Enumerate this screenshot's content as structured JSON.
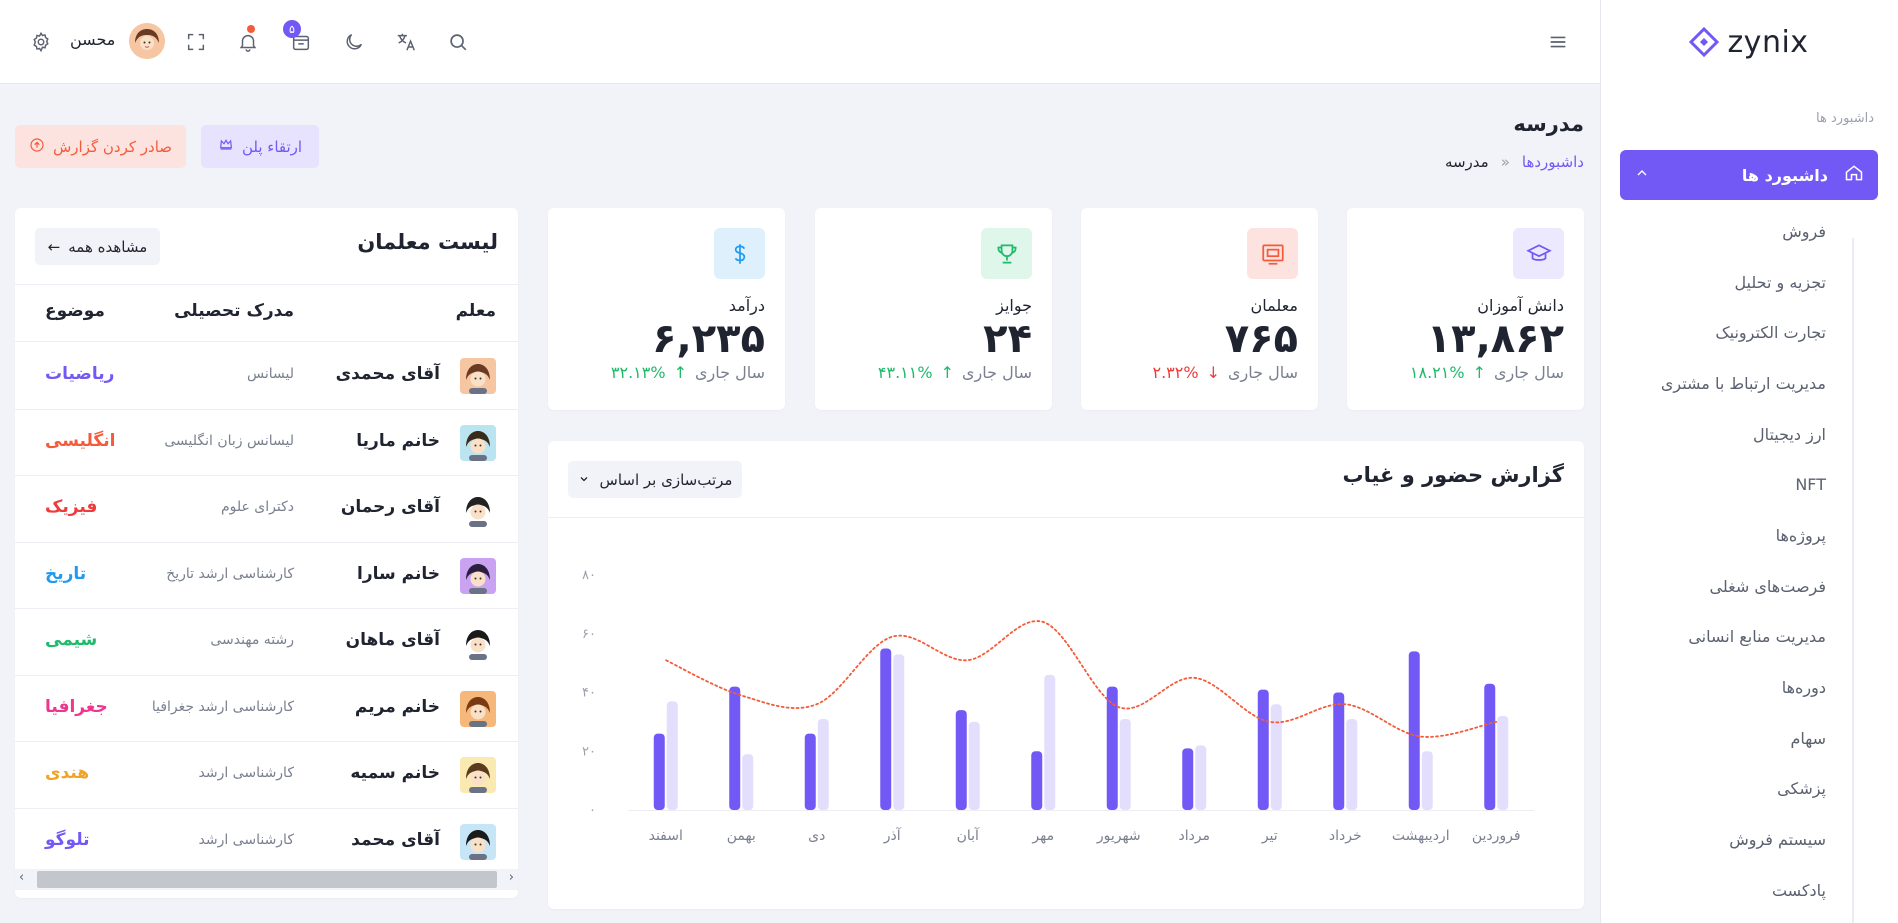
{
  "app": {
    "name": "zynix"
  },
  "header": {
    "user_name": "محسن",
    "cart_count": "۵"
  },
  "sidebar": {
    "section_title": "داشبورد ها",
    "active_item": "داشبورد ها",
    "items": [
      "فروش",
      "تجزیه و تحلیل",
      "تجارت الکترونیک",
      "مدیریت ارتباط با مشتری",
      "ارز دیجیتال",
      "NFT",
      "پروژه‌ها",
      "فرصت‌های شغلی",
      "مدیریت منابع انسانی",
      "دوره‌ها",
      "سهام",
      "پزشکی",
      "سیستم فروش",
      "پادکست"
    ]
  },
  "page": {
    "title": "مدرسه",
    "breadcrumb": {
      "parent": "داشبوردها",
      "separator": "»",
      "current": "مدرسه"
    },
    "export_label": "صادر کردن گزارش",
    "upgrade_label": "ارتقاء پلن"
  },
  "stats": [
    {
      "label": "دانش آموزان",
      "value": "۱۳,۸۶۲",
      "period": "سال جاری",
      "change": "۱۸.۲۱%",
      "trend": "up",
      "icon": "graduation-cap-icon",
      "icon_color": "#7258f5",
      "icon_bg": "#ece9fe"
    },
    {
      "label": "معلمان",
      "value": "۷۶۵",
      "period": "سال جاری",
      "change": "۲.۳۲%",
      "trend": "down",
      "icon": "presentation-board-icon",
      "icon_color": "#f35b3a",
      "icon_bg": "#fde3df"
    },
    {
      "label": "جوایز",
      "value": "۲۴",
      "period": "سال جاری",
      "change": "۴۳.۱۱%",
      "trend": "up",
      "icon": "trophy-icon",
      "icon_color": "#1fba6a",
      "icon_bg": "#dff6ea"
    },
    {
      "label": "درآمد",
      "value": "۶,۲۳۵",
      "period": "سال جاری",
      "change": "۳۲.۱۳%",
      "trend": "up",
      "icon": "dollar-icon",
      "icon_color": "#1e9bf0",
      "icon_bg": "#dff0fd"
    }
  ],
  "attendance": {
    "title": "گزارش حضور و غیاب",
    "sort_label": "مرتب‌سازی بر اساس"
  },
  "chart_data": {
    "type": "bar",
    "categories": [
      "فروردین",
      "اردیبهشت",
      "خرداد",
      "تیر",
      "مرداد",
      "شهریور",
      "مهر",
      "آبان",
      "آذر",
      "دی",
      "بهمن",
      "اسفند"
    ],
    "y_ticks": [
      "۰",
      "۲۰",
      "۴۰",
      "۶۰",
      "۸۰"
    ],
    "ylim": [
      0,
      80
    ],
    "series": [
      {
        "type": "bar",
        "color": "#7258f5",
        "values": [
          43,
          54,
          40,
          41,
          21,
          42,
          20,
          34,
          55,
          26,
          42,
          26
        ]
      },
      {
        "type": "bar",
        "color": "#e3defc",
        "values": [
          32,
          20,
          31,
          36,
          22,
          31,
          46,
          30,
          53,
          31,
          19,
          37
        ]
      },
      {
        "type": "line",
        "style": "dotted",
        "color": "#f35b3a",
        "values": [
          30,
          25,
          36,
          30,
          45,
          35,
          64,
          51,
          59,
          36,
          39,
          51
        ]
      }
    ],
    "grid": false
  },
  "teachers": {
    "title": "لیست معلمان",
    "view_all_label": "مشاهده همه",
    "columns": {
      "teacher": "معلم",
      "degree": "مدرک تحصیلی",
      "subject": "موضوع"
    },
    "rows": [
      {
        "name": "آقای محمدی",
        "degree": "لیسانس",
        "subject": "ریاضیات",
        "subject_color": "#7258f5",
        "avatar_bg": "#f6c6a2"
      },
      {
        "name": "خانم ماریا",
        "degree": "لیسانس زبان انگلیسی",
        "subject": "انگلیسی",
        "subject_color": "#f35b3a",
        "avatar_bg": "#b9e4f0"
      },
      {
        "name": "آقای رحمان",
        "degree": "دکترای علوم",
        "subject": "فیزیک",
        "subject_color": "#ef3b3b",
        "avatar_bg": "#ffffff"
      },
      {
        "name": "خانم سارا",
        "degree": "کارشناسی ارشد تاریخ",
        "subject": "تاریخ",
        "subject_color": "#1e9bf0",
        "avatar_bg": "#c9a3f2"
      },
      {
        "name": "آقای ماهان",
        "degree": "رشته مهندسی",
        "subject": "شیمی",
        "subject_color": "#1fba6a",
        "avatar_bg": "#ffffff"
      },
      {
        "name": "خانم مریم",
        "degree": "کارشناسی ارشد جغرافیا",
        "subject": "جغرافیا",
        "subject_color": "#f0358f",
        "avatar_bg": "#f6b77a"
      },
      {
        "name": "خانم سمیه",
        "degree": "کارشناسی ارشد",
        "subject": "هندی",
        "subject_color": "#f0a324",
        "avatar_bg": "#fae9b0"
      },
      {
        "name": "آقای محمد",
        "degree": "کارشناسی ارشد",
        "subject": "تلوگو",
        "subject_color": "#7258f5",
        "avatar_bg": "#c6e6f7"
      }
    ]
  }
}
